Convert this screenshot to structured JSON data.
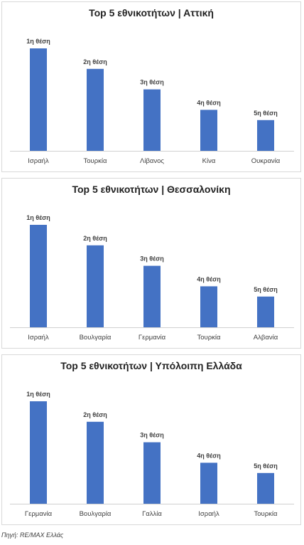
{
  "chart_data": [
    {
      "type": "bar",
      "title": "Top 5 εθνικοτήτων | Αττική",
      "categories": [
        "Ισραήλ",
        "Τουρκία",
        "Λίβανος",
        "Κίνα",
        "Ουκρανία"
      ],
      "values": [
        5,
        4,
        3,
        2,
        1.5
      ],
      "labels": [
        "1η θέση",
        "2η θέση",
        "3η θέση",
        "4η θέση",
        "5η θέση"
      ],
      "xlabel": "",
      "ylabel": "",
      "ylim": [
        0,
        5
      ],
      "grid": false,
      "bar_color": "#4472c4"
    },
    {
      "type": "bar",
      "title": "Top 5 εθνικοτήτων | Θεσσαλονίκη",
      "categories": [
        "Ισραήλ",
        "Βουλγαρία",
        "Γερμανία",
        "Τουρκία",
        "Αλβανία"
      ],
      "values": [
        5,
        4,
        3,
        2,
        1.5
      ],
      "labels": [
        "1η θέση",
        "2η θέση",
        "3η θέση",
        "4η θέση",
        "5η θέση"
      ],
      "xlabel": "",
      "ylabel": "",
      "ylim": [
        0,
        5
      ],
      "grid": false,
      "bar_color": "#4472c4"
    },
    {
      "type": "bar",
      "title": "Top 5 εθνικοτήτων | Υπόλοιπη Ελλάδα",
      "categories": [
        "Γερμανία",
        "Βουλγαρία",
        "Γαλλία",
        "Ισραήλ",
        "Τουρκία"
      ],
      "values": [
        5,
        4,
        3,
        2,
        1.5
      ],
      "labels": [
        "1η θέση",
        "2η θέση",
        "3η θέση",
        "4η θέση",
        "5η θέση"
      ],
      "xlabel": "",
      "ylabel": "",
      "ylim": [
        0,
        5
      ],
      "grid": false,
      "bar_color": "#4472c4"
    }
  ],
  "source": "Πηγή: RE/MAX Ελλάς"
}
